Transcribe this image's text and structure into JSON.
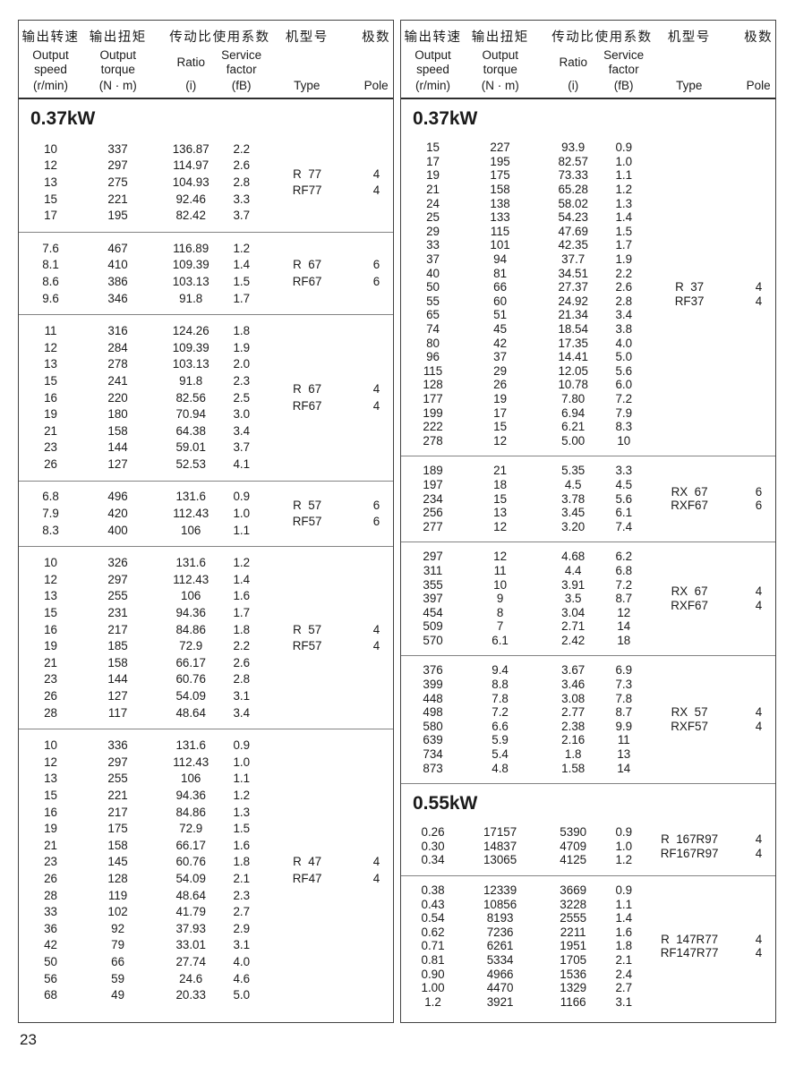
{
  "page": {
    "number": "23"
  },
  "header": {
    "cols": [
      {
        "zh": "输出转速",
        "en": "Output\nspeed",
        "unit": "(r/min)"
      },
      {
        "zh": "输出扭矩",
        "en": "Output\ntorque",
        "unit": "(N · m)"
      },
      {
        "zh": "传动比",
        "en": "Ratio",
        "unit": "(i)"
      },
      {
        "zh": "使用系数",
        "en": "Service\nfactor",
        "unit": "(fB)"
      },
      {
        "zh": "机型号",
        "en": "",
        "unit": "Type"
      },
      {
        "zh": "极数",
        "en": "",
        "unit": "Pole"
      }
    ]
  },
  "panels": [
    {
      "sections": [
        {
          "title": "0.37kW",
          "groups": [
            {
              "rows": [
                [
                  "10",
                  "337",
                  "136.87",
                  "2.2"
                ],
                [
                  "12",
                  "297",
                  "114.97",
                  "2.6"
                ],
                [
                  "13",
                  "275",
                  "104.93",
                  "2.8"
                ],
                [
                  "15",
                  "221",
                  "92.46",
                  "3.3"
                ],
                [
                  "17",
                  "195",
                  "82.42",
                  "3.7"
                ]
              ],
              "types": [
                [
                  "R  77",
                  "4"
                ],
                [
                  "RF77",
                  "4"
                ]
              ]
            },
            {
              "rows": [
                [
                  "7.6",
                  "467",
                  "116.89",
                  "1.2"
                ],
                [
                  "8.1",
                  "410",
                  "109.39",
                  "1.4"
                ],
                [
                  "8.6",
                  "386",
                  "103.13",
                  "1.5"
                ],
                [
                  "9.6",
                  "346",
                  "91.8",
                  "1.7"
                ]
              ],
              "types": [
                [
                  "R  67",
                  "6"
                ],
                [
                  "RF67",
                  "6"
                ]
              ]
            },
            {
              "rows": [
                [
                  "11",
                  "316",
                  "124.26",
                  "1.8"
                ],
                [
                  "12",
                  "284",
                  "109.39",
                  "1.9"
                ],
                [
                  "13",
                  "278",
                  "103.13",
                  "2.0"
                ],
                [
                  "15",
                  "241",
                  "91.8",
                  "2.3"
                ],
                [
                  "16",
                  "220",
                  "82.56",
                  "2.5"
                ],
                [
                  "19",
                  "180",
                  "70.94",
                  "3.0"
                ],
                [
                  "21",
                  "158",
                  "64.38",
                  "3.4"
                ],
                [
                  "23",
                  "144",
                  "59.01",
                  "3.7"
                ],
                [
                  "26",
                  "127",
                  "52.53",
                  "4.1"
                ]
              ],
              "types": [
                [
                  "R  67",
                  "4"
                ],
                [
                  "RF67",
                  "4"
                ]
              ]
            },
            {
              "rows": [
                [
                  "6.8",
                  "496",
                  "131.6",
                  "0.9"
                ],
                [
                  "7.9",
                  "420",
                  "112.43",
                  "1.0"
                ],
                [
                  "8.3",
                  "400",
                  "106",
                  "1.1"
                ]
              ],
              "types": [
                [
                  "R  57",
                  "6"
                ],
                [
                  "RF57",
                  "6"
                ]
              ]
            },
            {
              "rows": [
                [
                  "10",
                  "326",
                  "131.6",
                  "1.2"
                ],
                [
                  "12",
                  "297",
                  "112.43",
                  "1.4"
                ],
                [
                  "13",
                  "255",
                  "106",
                  "1.6"
                ],
                [
                  "15",
                  "231",
                  "94.36",
                  "1.7"
                ],
                [
                  "16",
                  "217",
                  "84.86",
                  "1.8"
                ],
                [
                  "19",
                  "185",
                  "72.9",
                  "2.2"
                ],
                [
                  "21",
                  "158",
                  "66.17",
                  "2.6"
                ],
                [
                  "23",
                  "144",
                  "60.76",
                  "2.8"
                ],
                [
                  "26",
                  "127",
                  "54.09",
                  "3.1"
                ],
                [
                  "28",
                  "117",
                  "48.64",
                  "3.4"
                ]
              ],
              "types": [
                [
                  "R  57",
                  "4"
                ],
                [
                  "RF57",
                  "4"
                ]
              ]
            },
            {
              "rows": [
                [
                  "10",
                  "336",
                  "131.6",
                  "0.9"
                ],
                [
                  "12",
                  "297",
                  "112.43",
                  "1.0"
                ],
                [
                  "13",
                  "255",
                  "106",
                  "1.1"
                ],
                [
                  "15",
                  "221",
                  "94.36",
                  "1.2"
                ],
                [
                  "16",
                  "217",
                  "84.86",
                  "1.3"
                ],
                [
                  "19",
                  "175",
                  "72.9",
                  "1.5"
                ],
                [
                  "21",
                  "158",
                  "66.17",
                  "1.6"
                ],
                [
                  "23",
                  "145",
                  "60.76",
                  "1.8"
                ],
                [
                  "26",
                  "128",
                  "54.09",
                  "2.1"
                ],
                [
                  "28",
                  "119",
                  "48.64",
                  "2.3"
                ],
                [
                  "33",
                  "102",
                  "41.79",
                  "2.7"
                ],
                [
                  "36",
                  "92",
                  "37.93",
                  "2.9"
                ],
                [
                  "42",
                  "79",
                  "33.01",
                  "3.1"
                ],
                [
                  "50",
                  "66",
                  "27.74",
                  "4.0"
                ],
                [
                  "56",
                  "59",
                  "24.6",
                  "4.6"
                ],
                [
                  "68",
                  "49",
                  "20.33",
                  "5.0"
                ]
              ],
              "types": [
                [
                  "R  47",
                  "4"
                ],
                [
                  "RF47",
                  "4"
                ]
              ]
            }
          ]
        }
      ]
    },
    {
      "sections": [
        {
          "title": "0.37kW",
          "groups": [
            {
              "rows": [
                [
                  "15",
                  "227",
                  "93.9",
                  "0.9"
                ],
                [
                  "17",
                  "195",
                  "82.57",
                  "1.0"
                ],
                [
                  "19",
                  "175",
                  "73.33",
                  "1.1"
                ],
                [
                  "21",
                  "158",
                  "65.28",
                  "1.2"
                ],
                [
                  "24",
                  "138",
                  "58.02",
                  "1.3"
                ],
                [
                  "25",
                  "133",
                  "54.23",
                  "1.4"
                ],
                [
                  "29",
                  "115",
                  "47.69",
                  "1.5"
                ],
                [
                  "33",
                  "101",
                  "42.35",
                  "1.7"
                ],
                [
                  "37",
                  "94",
                  "37.7",
                  "1.9"
                ],
                [
                  "40",
                  "81",
                  "34.51",
                  "2.2"
                ],
                [
                  "50",
                  "66",
                  "27.37",
                  "2.6"
                ],
                [
                  "55",
                  "60",
                  "24.92",
                  "2.8"
                ],
                [
                  "65",
                  "51",
                  "21.34",
                  "3.4"
                ],
                [
                  "74",
                  "45",
                  "18.54",
                  "3.8"
                ],
                [
                  "80",
                  "42",
                  "17.35",
                  "4.0"
                ],
                [
                  "96",
                  "37",
                  "14.41",
                  "5.0"
                ],
                [
                  "115",
                  "29",
                  "12.05",
                  "5.6"
                ],
                [
                  "128",
                  "26",
                  "10.78",
                  "6.0"
                ],
                [
                  "177",
                  "19",
                  "7.80",
                  "7.2"
                ],
                [
                  "199",
                  "17",
                  "6.94",
                  "7.9"
                ],
                [
                  "222",
                  "15",
                  "6.21",
                  "8.3"
                ],
                [
                  "278",
                  "12",
                  "5.00",
                  "10"
                ]
              ],
              "types": [
                [
                  "R  37",
                  "4"
                ],
                [
                  "RF37",
                  "4"
                ]
              ]
            },
            {
              "rows": [
                [
                  "189",
                  "21",
                  "5.35",
                  "3.3"
                ],
                [
                  "197",
                  "18",
                  "4.5",
                  "4.5"
                ],
                [
                  "234",
                  "15",
                  "3.78",
                  "5.6"
                ],
                [
                  "256",
                  "13",
                  "3.45",
                  "6.1"
                ],
                [
                  "277",
                  "12",
                  "3.20",
                  "7.4"
                ]
              ],
              "types": [
                [
                  "RX  67",
                  "6"
                ],
                [
                  "RXF67",
                  "6"
                ]
              ]
            },
            {
              "rows": [
                [
                  "297",
                  "12",
                  "4.68",
                  "6.2"
                ],
                [
                  "311",
                  "11",
                  "4.4",
                  "6.8"
                ],
                [
                  "355",
                  "10",
                  "3.91",
                  "7.2"
                ],
                [
                  "397",
                  "9",
                  "3.5",
                  "8.7"
                ],
                [
                  "454",
                  "8",
                  "3.04",
                  "12"
                ],
                [
                  "509",
                  "7",
                  "2.71",
                  "14"
                ],
                [
                  "570",
                  "6.1",
                  "2.42",
                  "18"
                ]
              ],
              "types": [
                [
                  "RX  67",
                  "4"
                ],
                [
                  "RXF67",
                  "4"
                ]
              ]
            },
            {
              "rows": [
                [
                  "376",
                  "9.4",
                  "3.67",
                  "6.9"
                ],
                [
                  "399",
                  "8.8",
                  "3.46",
                  "7.3"
                ],
                [
                  "448",
                  "7.8",
                  "3.08",
                  "7.8"
                ],
                [
                  "498",
                  "7.2",
                  "2.77",
                  "8.7"
                ],
                [
                  "580",
                  "6.6",
                  "2.38",
                  "9.9"
                ],
                [
                  "639",
                  "5.9",
                  "2.16",
                  "11"
                ],
                [
                  "734",
                  "5.4",
                  "1.8",
                  "13"
                ],
                [
                  "873",
                  "4.8",
                  "1.58",
                  "14"
                ]
              ],
              "types": [
                [
                  "RX  57",
                  "4"
                ],
                [
                  "RXF57",
                  "4"
                ]
              ]
            }
          ]
        },
        {
          "title": "0.55kW",
          "groups": [
            {
              "rows": [
                [
                  "0.26",
                  "17157",
                  "5390",
                  "0.9"
                ],
                [
                  "0.30",
                  "14837",
                  "4709",
                  "1.0"
                ],
                [
                  "0.34",
                  "13065",
                  "4125",
                  "1.2"
                ]
              ],
              "types": [
                [
                  "R  167R97",
                  "4"
                ],
                [
                  "RF167R97",
                  "4"
                ]
              ]
            },
            {
              "rows": [
                [
                  "0.38",
                  "12339",
                  "3669",
                  "0.9"
                ],
                [
                  "0.43",
                  "10856",
                  "3228",
                  "1.1"
                ],
                [
                  "0.54",
                  "8193",
                  "2555",
                  "1.4"
                ],
                [
                  "0.62",
                  "7236",
                  "2211",
                  "1.6"
                ],
                [
                  "0.71",
                  "6261",
                  "1951",
                  "1.8"
                ],
                [
                  "0.81",
                  "5334",
                  "1705",
                  "2.1"
                ],
                [
                  "0.90",
                  "4966",
                  "1536",
                  "2.4"
                ],
                [
                  "1.00",
                  "4470",
                  "1329",
                  "2.7"
                ],
                [
                  "1.2",
                  "3921",
                  "1166",
                  "3.1"
                ]
              ],
              "types": [
                [
                  "R  147R77",
                  "4"
                ],
                [
                  "RF147R77",
                  "4"
                ]
              ]
            }
          ]
        }
      ]
    }
  ]
}
